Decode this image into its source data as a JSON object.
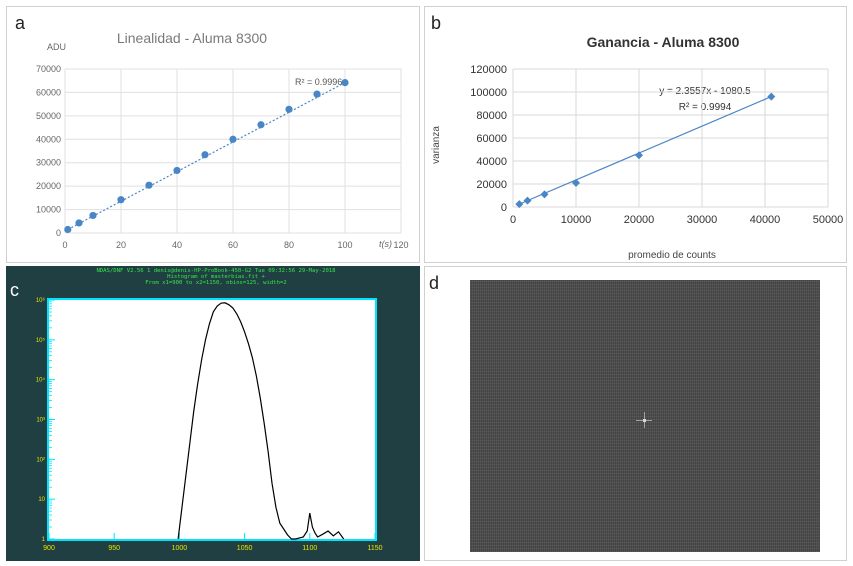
{
  "panels": {
    "a": {
      "letter": "a"
    },
    "b": {
      "letter": "b"
    },
    "c": {
      "letter": "c",
      "header": [
        "NDAS/DNF V2.56 1 denis@denis-HP-ProBook-450-G2 Tue 09:32:56 29-May-2018",
        "Histogram of masterbias.fit +",
        "From x1=900 to x2=1150, nbins=125, width=2"
      ]
    },
    "d": {
      "letter": "d"
    }
  },
  "chart_data": [
    {
      "id": "a",
      "type": "scatter",
      "title": "Linealidad - Aluma 8300",
      "ylabel": "ADU",
      "xlabel": "t(s)",
      "xlim": [
        0,
        120
      ],
      "ylim": [
        0,
        70000
      ],
      "xticks": [
        0,
        20,
        40,
        60,
        80,
        100,
        120
      ],
      "yticks": [
        0,
        10000,
        20000,
        30000,
        40000,
        50000,
        60000,
        70000
      ],
      "grid": true,
      "trendline": "dotted linear",
      "annotation": "R² = 0.9996",
      "series": [
        {
          "x": [
            1,
            5,
            10,
            20,
            30,
            40,
            50,
            60,
            70,
            80,
            90,
            100
          ],
          "y": [
            1500,
            4300,
            7500,
            14200,
            20400,
            26700,
            33400,
            40000,
            46200,
            52800,
            59300,
            64200
          ]
        }
      ],
      "colors": {
        "points": "#4a86c5",
        "grid": "#e0e0e0"
      }
    },
    {
      "id": "b",
      "type": "scatter",
      "title": "Ganancia - Aluma 8300",
      "xlabel": "promedio de counts",
      "ylabel": "varianza",
      "xlim": [
        0,
        50000
      ],
      "ylim": [
        0,
        120000
      ],
      "xticks": [
        0,
        10000,
        20000,
        30000,
        40000,
        50000
      ],
      "yticks": [
        0,
        20000,
        40000,
        60000,
        80000,
        100000,
        120000
      ],
      "grid": true,
      "trendline": "solid linear",
      "annotation": [
        "y = 2.3557x - 1080.5",
        "R² = 0.9994"
      ],
      "series": [
        {
          "x": [
            1000,
            2300,
            5000,
            10000,
            20000,
            41000
          ],
          "y": [
            2500,
            5500,
            11000,
            21000,
            45000,
            96000
          ]
        }
      ],
      "colors": {
        "points": "#4a86c5",
        "grid": "#d9d9d9"
      }
    },
    {
      "id": "c",
      "type": "line",
      "title": "Histogram of masterbias.fit +",
      "xlim": [
        900,
        1150
      ],
      "xticks": [
        900,
        950,
        1000,
        1050,
        1100,
        1150
      ],
      "yscale": "log",
      "ylim": [
        1,
        1000000
      ],
      "yticks_labels": [
        "1",
        "10",
        "10²",
        "10³",
        "10⁴",
        "10⁵",
        "10⁶"
      ],
      "series": [
        {
          "x": [
            999,
            1002,
            1005,
            1008,
            1011,
            1014,
            1017,
            1020,
            1023,
            1026,
            1029,
            1032,
            1035,
            1038,
            1041,
            1044,
            1047,
            1050,
            1053,
            1056,
            1059,
            1062,
            1065,
            1068,
            1071,
            1074,
            1077,
            1080,
            1083,
            1086,
            1089,
            1095,
            1098,
            1100,
            1102,
            1104,
            1106,
            1110,
            1114,
            1118,
            1122,
            1126
          ],
          "logy": [
            0,
            0.8,
            1.6,
            2.4,
            3.2,
            3.9,
            4.5,
            5.0,
            5.4,
            5.7,
            5.85,
            5.92,
            5.93,
            5.88,
            5.8,
            5.65,
            5.45,
            5.2,
            4.9,
            4.55,
            4.1,
            3.55,
            2.9,
            2.2,
            1.4,
            0.8,
            0.4,
            0.25,
            0.1,
            0,
            0,
            0.05,
            0.2,
            0.65,
            0.3,
            0.15,
            0.05,
            0.12,
            0.2,
            0.08,
            0.18,
            0
          ]
        }
      ],
      "colors": {
        "background": "#1f3f42",
        "axes": "#00e5ff",
        "line": "#000000",
        "ticks_text": "#e6e600"
      }
    }
  ]
}
